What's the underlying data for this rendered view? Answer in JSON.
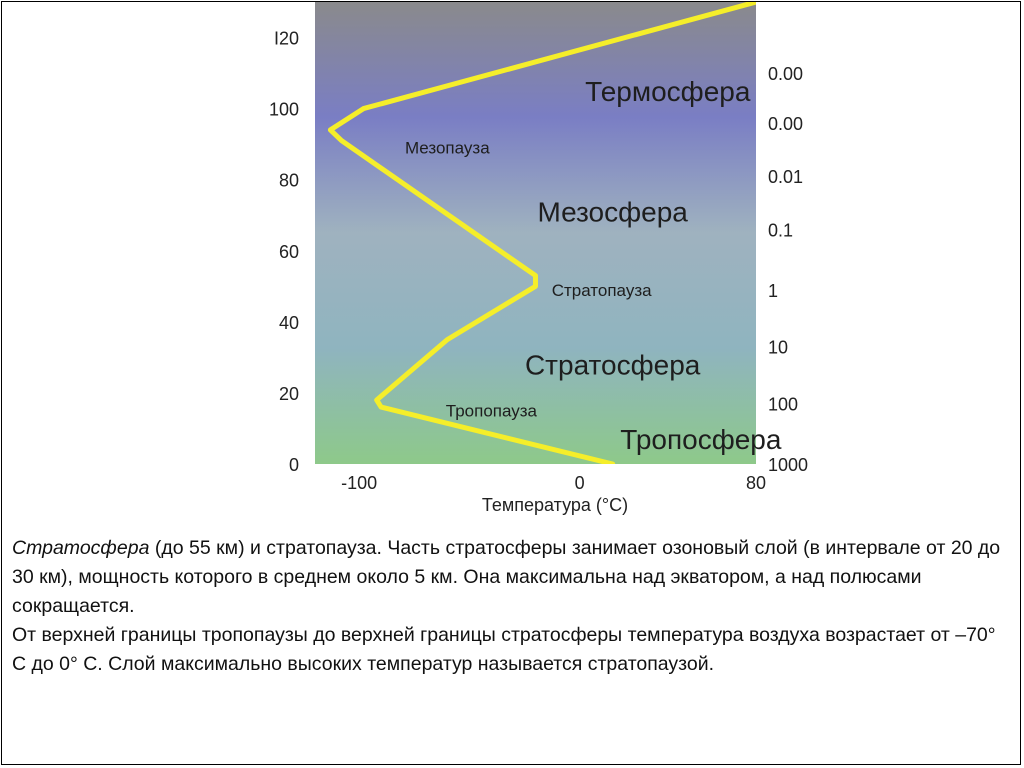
{
  "chart_data": {
    "type": "line",
    "xlabel": "Температура (°C)",
    "ylabel": "",
    "xlim": [
      -120,
      80
    ],
    "ylim": [
      0,
      130
    ],
    "x_ticks": [
      "-100",
      "0",
      "80"
    ],
    "y_ticks": [
      "0",
      "20",
      "40",
      "60",
      "80",
      "100",
      "I20"
    ],
    "y_tick_values": [
      0,
      20,
      40,
      60,
      80,
      100,
      120
    ],
    "pressure_labels": [
      "0.00",
      "0.00",
      "0.01",
      "0.1",
      "1",
      "10",
      "100",
      "1000"
    ],
    "pressure_heights": [
      110,
      96,
      81,
      66,
      49,
      33,
      17,
      0
    ],
    "series": [
      {
        "name": "",
        "color": "#f5ee2a",
        "x": [
          15,
          -90,
          -92,
          -60,
          -20,
          -20,
          -108,
          -113,
          -98,
          80
        ],
        "y": [
          0,
          16,
          18,
          35,
          50,
          53,
          91,
          94,
          100,
          130
        ]
      }
    ],
    "layer_labels": [
      {
        "text": "Термосфера",
        "x": 40,
        "y": 105,
        "size": "large"
      },
      {
        "text": "Мезопауза",
        "x": -60,
        "y": 89,
        "size": "small"
      },
      {
        "text": "Мезосфера",
        "x": 15,
        "y": 71,
        "size": "large"
      },
      {
        "text": "Стратопауза",
        "x": 10,
        "y": 49,
        "size": "small"
      },
      {
        "text": "Стратосфера",
        "x": 15,
        "y": 28,
        "size": "large"
      },
      {
        "text": "Тропопауза",
        "x": -40,
        "y": 15,
        "size": "small"
      },
      {
        "text": "Тропосфера",
        "x": 55,
        "y": 7,
        "size": "large"
      }
    ],
    "background_gradient": [
      "#8a8a8c",
      "#7a7ec4",
      "#9fb2bf",
      "#8fb4bf",
      "#8ec98a"
    ]
  },
  "caption": {
    "para1_em": "Стратосфера",
    "para1_rest": " (до 55 км) и стратопауза. Часть стратосферы занимает озоновый слой (в интервале от 20 до 30 км), мощность которого в среднем около 5 км. Она максимальна над экватором, а над полюсами сокращается.",
    "para2": "От верхней границы тропопаузы до верхней границы стратосферы температура воздуха возрастает от –70° С до 0° С. Слой максимально высоких температур называется стратопаузой."
  }
}
